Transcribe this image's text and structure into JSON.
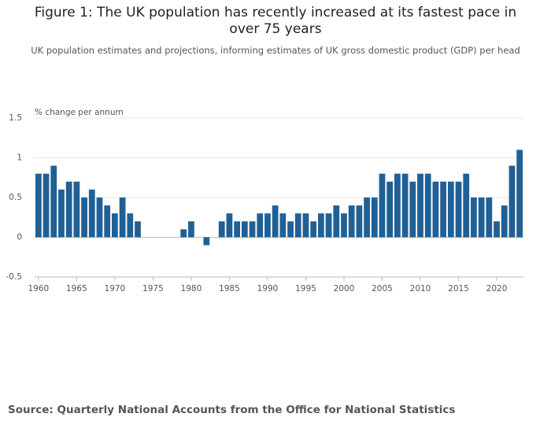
{
  "chart_data": {
    "type": "bar",
    "title": "Figure 1: The UK population has recently increased at its fastest pace in over 75 years",
    "subtitle": "UK population estimates and projections, informing estimates of UK gross domestic product (GDP) per head",
    "y_label": "% change per annum",
    "source": "Source: Quarterly National Accounts from the Office for National Statistics",
    "color": "#206095",
    "x": [
      1960,
      1961,
      1962,
      1963,
      1964,
      1965,
      1966,
      1967,
      1968,
      1969,
      1970,
      1971,
      1972,
      1973,
      1974,
      1975,
      1976,
      1977,
      1978,
      1979,
      1980,
      1981,
      1982,
      1983,
      1984,
      1985,
      1986,
      1987,
      1988,
      1989,
      1990,
      1991,
      1992,
      1993,
      1994,
      1995,
      1996,
      1997,
      1998,
      1999,
      2000,
      2001,
      2002,
      2003,
      2004,
      2005,
      2006,
      2007,
      2008,
      2009,
      2010,
      2011,
      2012,
      2013,
      2014,
      2015,
      2016,
      2017,
      2018,
      2019,
      2020,
      2021,
      2022,
      2023
    ],
    "values": [
      0.8,
      0.8,
      0.9,
      0.6,
      0.7,
      0.7,
      0.5,
      0.6,
      0.5,
      0.4,
      0.3,
      0.5,
      0.3,
      0.2,
      0,
      0,
      0,
      0,
      0,
      0.1,
      0.2,
      0,
      -0.1,
      0,
      0.2,
      0.3,
      0.2,
      0.2,
      0.2,
      0.3,
      0.3,
      0.4,
      0.3,
      0.2,
      0.3,
      0.3,
      0.2,
      0.3,
      0.3,
      0.4,
      0.3,
      0.4,
      0.4,
      0.5,
      0.5,
      0.8,
      0.7,
      0.8,
      0.8,
      0.7,
      0.8,
      0.8,
      0.7,
      0.7,
      0.7,
      0.7,
      0.8,
      0.5,
      0.5,
      0.5,
      0.2,
      0.4,
      0.9,
      1.1
    ],
    "xlim": [
      1959.5,
      2023.5
    ],
    "xticks": [
      1960,
      1965,
      1970,
      1975,
      1980,
      1985,
      1990,
      1995,
      2000,
      2005,
      2010,
      2015,
      2020
    ],
    "ylim": [
      -0.5,
      1.5
    ],
    "yticks": [
      -0.5,
      0,
      0.5,
      1,
      1.5
    ],
    "grid": true
  }
}
